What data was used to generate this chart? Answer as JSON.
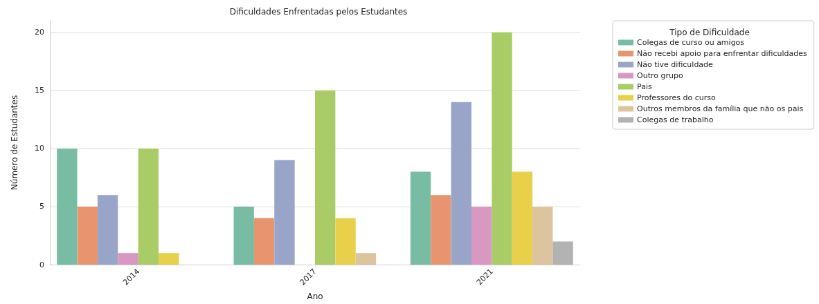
{
  "chart_data": {
    "type": "bar",
    "title": "Dificuldades Enfrentadas pelos Estudantes",
    "xlabel": "Ano",
    "ylabel": "Número de Estudantes",
    "legend_title": "Tipo de Dificuldade",
    "categories": [
      "2014",
      "2017",
      "2021"
    ],
    "series": [
      {
        "name": "Colegas de curso ou amigos",
        "color": "#79bca4",
        "values": [
          10,
          5,
          8
        ]
      },
      {
        "name": "Não recebi apoio para enfrentar dificuldades",
        "color": "#e8956f",
        "values": [
          5,
          4,
          6
        ]
      },
      {
        "name": "Não tive dificuldade",
        "color": "#98a5c9",
        "values": [
          6,
          9,
          14
        ]
      },
      {
        "name": "Outro grupo",
        "color": "#d998c2",
        "values": [
          1,
          null,
          5
        ]
      },
      {
        "name": "Pais",
        "color": "#a9cc66",
        "values": [
          10,
          15,
          20
        ]
      },
      {
        "name": "Professores do curso",
        "color": "#e9d04a",
        "values": [
          1,
          4,
          8
        ]
      },
      {
        "name": "Outros membros da família que não os pais",
        "color": "#dcc49f",
        "values": [
          null,
          1,
          5
        ]
      },
      {
        "name": "Colegas de trabalho",
        "color": "#b3b3b3",
        "values": [
          null,
          null,
          2
        ]
      }
    ],
    "ylim": [
      0,
      21
    ],
    "yticks": [
      0,
      5,
      10,
      15,
      20
    ],
    "grid": "y",
    "legend": "top right"
  }
}
